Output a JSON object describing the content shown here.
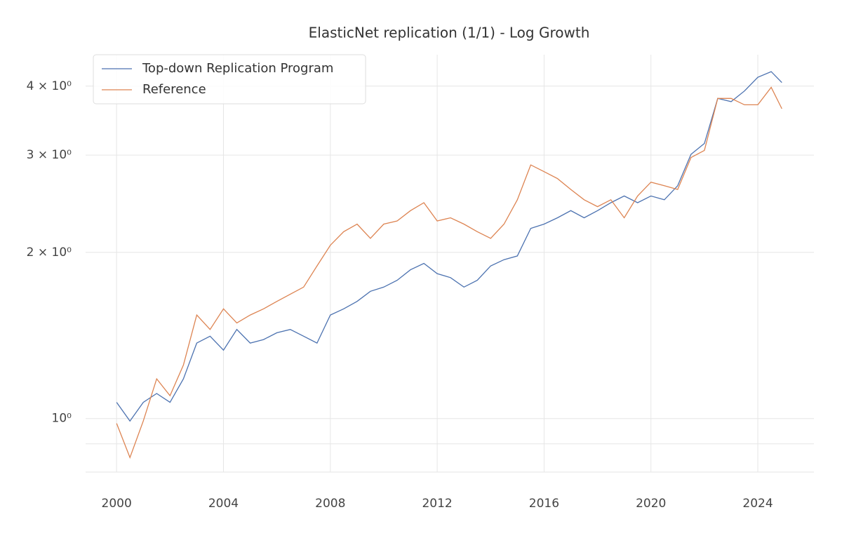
{
  "chart_data": {
    "type": "line",
    "title": "ElasticNet replication (1/1) - Log Growth",
    "x": [
      2000,
      2000.5,
      2001,
      2001.5,
      2002,
      2002.5,
      2003,
      2003.5,
      2004,
      2004.5,
      2005,
      2005.5,
      2006,
      2006.5,
      2007,
      2007.5,
      2008,
      2008.5,
      2009,
      2009.5,
      2010,
      2010.5,
      2011,
      2011.5,
      2012,
      2012.5,
      2013,
      2013.5,
      2014,
      2014.5,
      2015,
      2015.5,
      2016,
      2016.5,
      2017,
      2017.5,
      2018,
      2018.5,
      2019,
      2019.5,
      2020,
      2020.5,
      2021,
      2021.5,
      2022,
      2022.5,
      2023,
      2023.5,
      2024,
      2024.5,
      2024.9
    ],
    "series": [
      {
        "name": "Top-down Replication Program",
        "color": "#4c72b0",
        "values": [
          1.07,
          0.99,
          1.07,
          1.11,
          1.07,
          1.18,
          1.37,
          1.41,
          1.33,
          1.45,
          1.37,
          1.39,
          1.43,
          1.45,
          1.41,
          1.37,
          1.54,
          1.58,
          1.63,
          1.7,
          1.73,
          1.78,
          1.86,
          1.91,
          1.83,
          1.8,
          1.73,
          1.78,
          1.89,
          1.94,
          1.97,
          2.21,
          2.25,
          2.31,
          2.38,
          2.31,
          2.38,
          2.46,
          2.53,
          2.46,
          2.53,
          2.49,
          2.64,
          3.01,
          3.15,
          3.8,
          3.75,
          3.92,
          4.15,
          4.25,
          4.06
        ]
      },
      {
        "name": "Reference",
        "color": "#dd8452",
        "values": [
          0.98,
          0.85,
          0.99,
          1.18,
          1.1,
          1.25,
          1.54,
          1.45,
          1.58,
          1.49,
          1.54,
          1.58,
          1.63,
          1.68,
          1.73,
          1.89,
          2.06,
          2.18,
          2.25,
          2.12,
          2.25,
          2.28,
          2.38,
          2.46,
          2.28,
          2.31,
          2.25,
          2.18,
          2.12,
          2.25,
          2.49,
          2.88,
          2.8,
          2.72,
          2.6,
          2.49,
          2.42,
          2.49,
          2.31,
          2.53,
          2.68,
          2.64,
          2.6,
          2.97,
          3.06,
          3.8,
          3.8,
          3.7,
          3.7,
          3.98,
          3.64
        ]
      }
    ],
    "xlim": [
      1998.84,
      2026.1
    ],
    "xticks": [
      2000,
      2004,
      2008,
      2012,
      2016,
      2020,
      2024
    ],
    "ylim": [
      0.8,
      4.56
    ],
    "y_scale": "log",
    "yticks": [
      {
        "value": 1,
        "label": "10⁰"
      },
      {
        "value": 2,
        "label": "2 × 10⁰"
      },
      {
        "value": 3,
        "label": "3 × 10⁰"
      },
      {
        "value": 4,
        "label": "4 × 10⁰"
      }
    ],
    "y_minor_gridlines": [
      0.9
    ],
    "grid": true,
    "legend": "upper left"
  }
}
